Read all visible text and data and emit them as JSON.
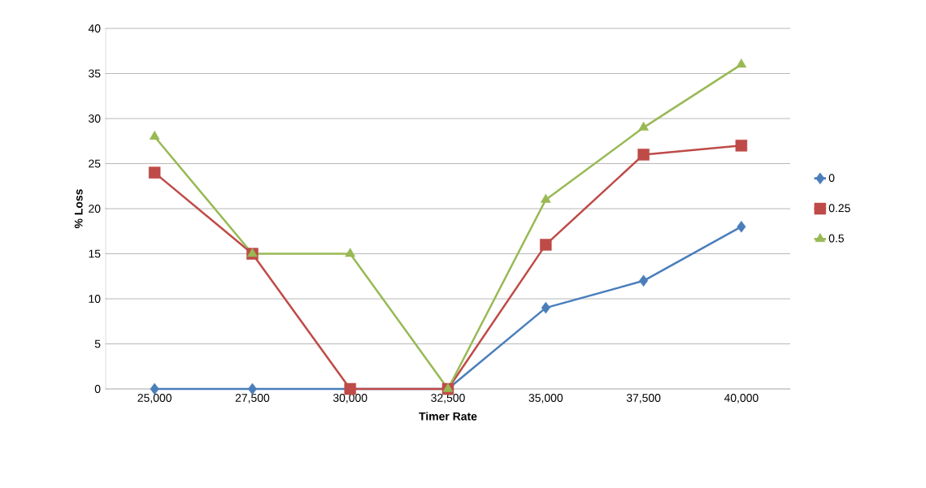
{
  "chart_data": {
    "type": "line",
    "xlabel": "Timer Rate",
    "ylabel": "% Loss",
    "categories": [
      "25,000",
      "27,500",
      "30,000",
      "32,500",
      "35,000",
      "37,500",
      "40,000"
    ],
    "series": [
      {
        "name": "0",
        "color": "#4a7ebb",
        "marker": "diamond",
        "values": [
          0,
          0,
          0,
          0,
          9,
          12,
          18
        ]
      },
      {
        "name": "0.25",
        "color": "#be4b48",
        "marker": "square",
        "values": [
          24,
          15,
          0,
          0,
          16,
          26,
          27
        ]
      },
      {
        "name": "0.5",
        "color": "#98b954",
        "marker": "triangle",
        "values": [
          28,
          15,
          15,
          0,
          21,
          29,
          36
        ]
      }
    ],
    "ylim": [
      0,
      40
    ],
    "yticks": [
      0,
      5,
      10,
      15,
      20,
      25,
      30,
      35,
      40
    ],
    "grid": "y",
    "legend": "right",
    "line_style": "solid"
  }
}
